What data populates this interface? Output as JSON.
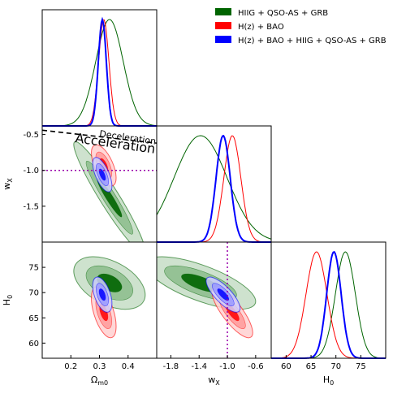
{
  "chart_data": {
    "type": "corner",
    "legend": {
      "placement": "top-right",
      "entries": [
        {
          "label": "HIIG + QSO-AS + GRB",
          "color": "#006400"
        },
        {
          "label": "H(z) + BAO",
          "color": "#ff0000"
        },
        {
          "label": "H(z) + BAO + HIIG + QSO-AS + GRB",
          "color": "#0000ff"
        }
      ]
    },
    "parameters": [
      {
        "key": "om",
        "label": "Ω",
        "sub": "m0",
        "range": [
          0.1,
          0.5
        ],
        "ticks": [
          "0.2",
          "0.3",
          "0.4"
        ],
        "tick_values": [
          0.2,
          0.3,
          0.4
        ]
      },
      {
        "key": "wx",
        "label": "w",
        "sub": "X",
        "range": [
          -2.0,
          -0.38
        ],
        "ticks": [
          "-1.8",
          "-1.4",
          "-1.0",
          "-0.6"
        ],
        "tick_values": [
          -1.8,
          -1.4,
          -1.0,
          -0.6
        ],
        "y_ticks": [
          "-0.5",
          "-1.0",
          "-1.5"
        ],
        "y_tick_values": [
          -0.5,
          -1.0,
          -1.5
        ]
      },
      {
        "key": "h0",
        "label": "H",
        "sub": "0",
        "range": [
          57,
          80
        ],
        "ticks": [
          "60",
          "65",
          "70",
          "75"
        ],
        "tick_values": [
          60,
          65,
          70,
          75
        ],
        "y_ticks": [
          "60",
          "65",
          "70",
          "75"
        ],
        "y_tick_values": [
          60,
          65,
          70,
          75
        ]
      }
    ],
    "series": [
      {
        "name": "HIIG + QSO-AS + GRB",
        "color": "#006400",
        "mean": {
          "om": 0.335,
          "wx": -1.38,
          "h0": 71.9
        },
        "sigma": {
          "om": 0.048,
          "wx": 0.3,
          "h0": 2.0
        }
      },
      {
        "name": "H(z) + BAO",
        "color": "#ff0000",
        "mean": {
          "om": 0.315,
          "wx": -0.93,
          "h0": 66.1
        },
        "sigma": {
          "om": 0.018,
          "wx": 0.12,
          "h0": 2.1
        }
      },
      {
        "name": "H(z) + BAO + HIIG + QSO-AS + GRB",
        "color": "#0000ff",
        "mean": {
          "om": 0.31,
          "wx": -1.06,
          "h0": 69.6
        },
        "sigma": {
          "om": 0.014,
          "wx": 0.1,
          "h0": 1.45
        }
      }
    ],
    "reference_lines": {
      "wx": -1.0,
      "color": "#9900aa"
    },
    "deceleration_label": "Deceleration",
    "acceleration_label": "Acceleration"
  }
}
